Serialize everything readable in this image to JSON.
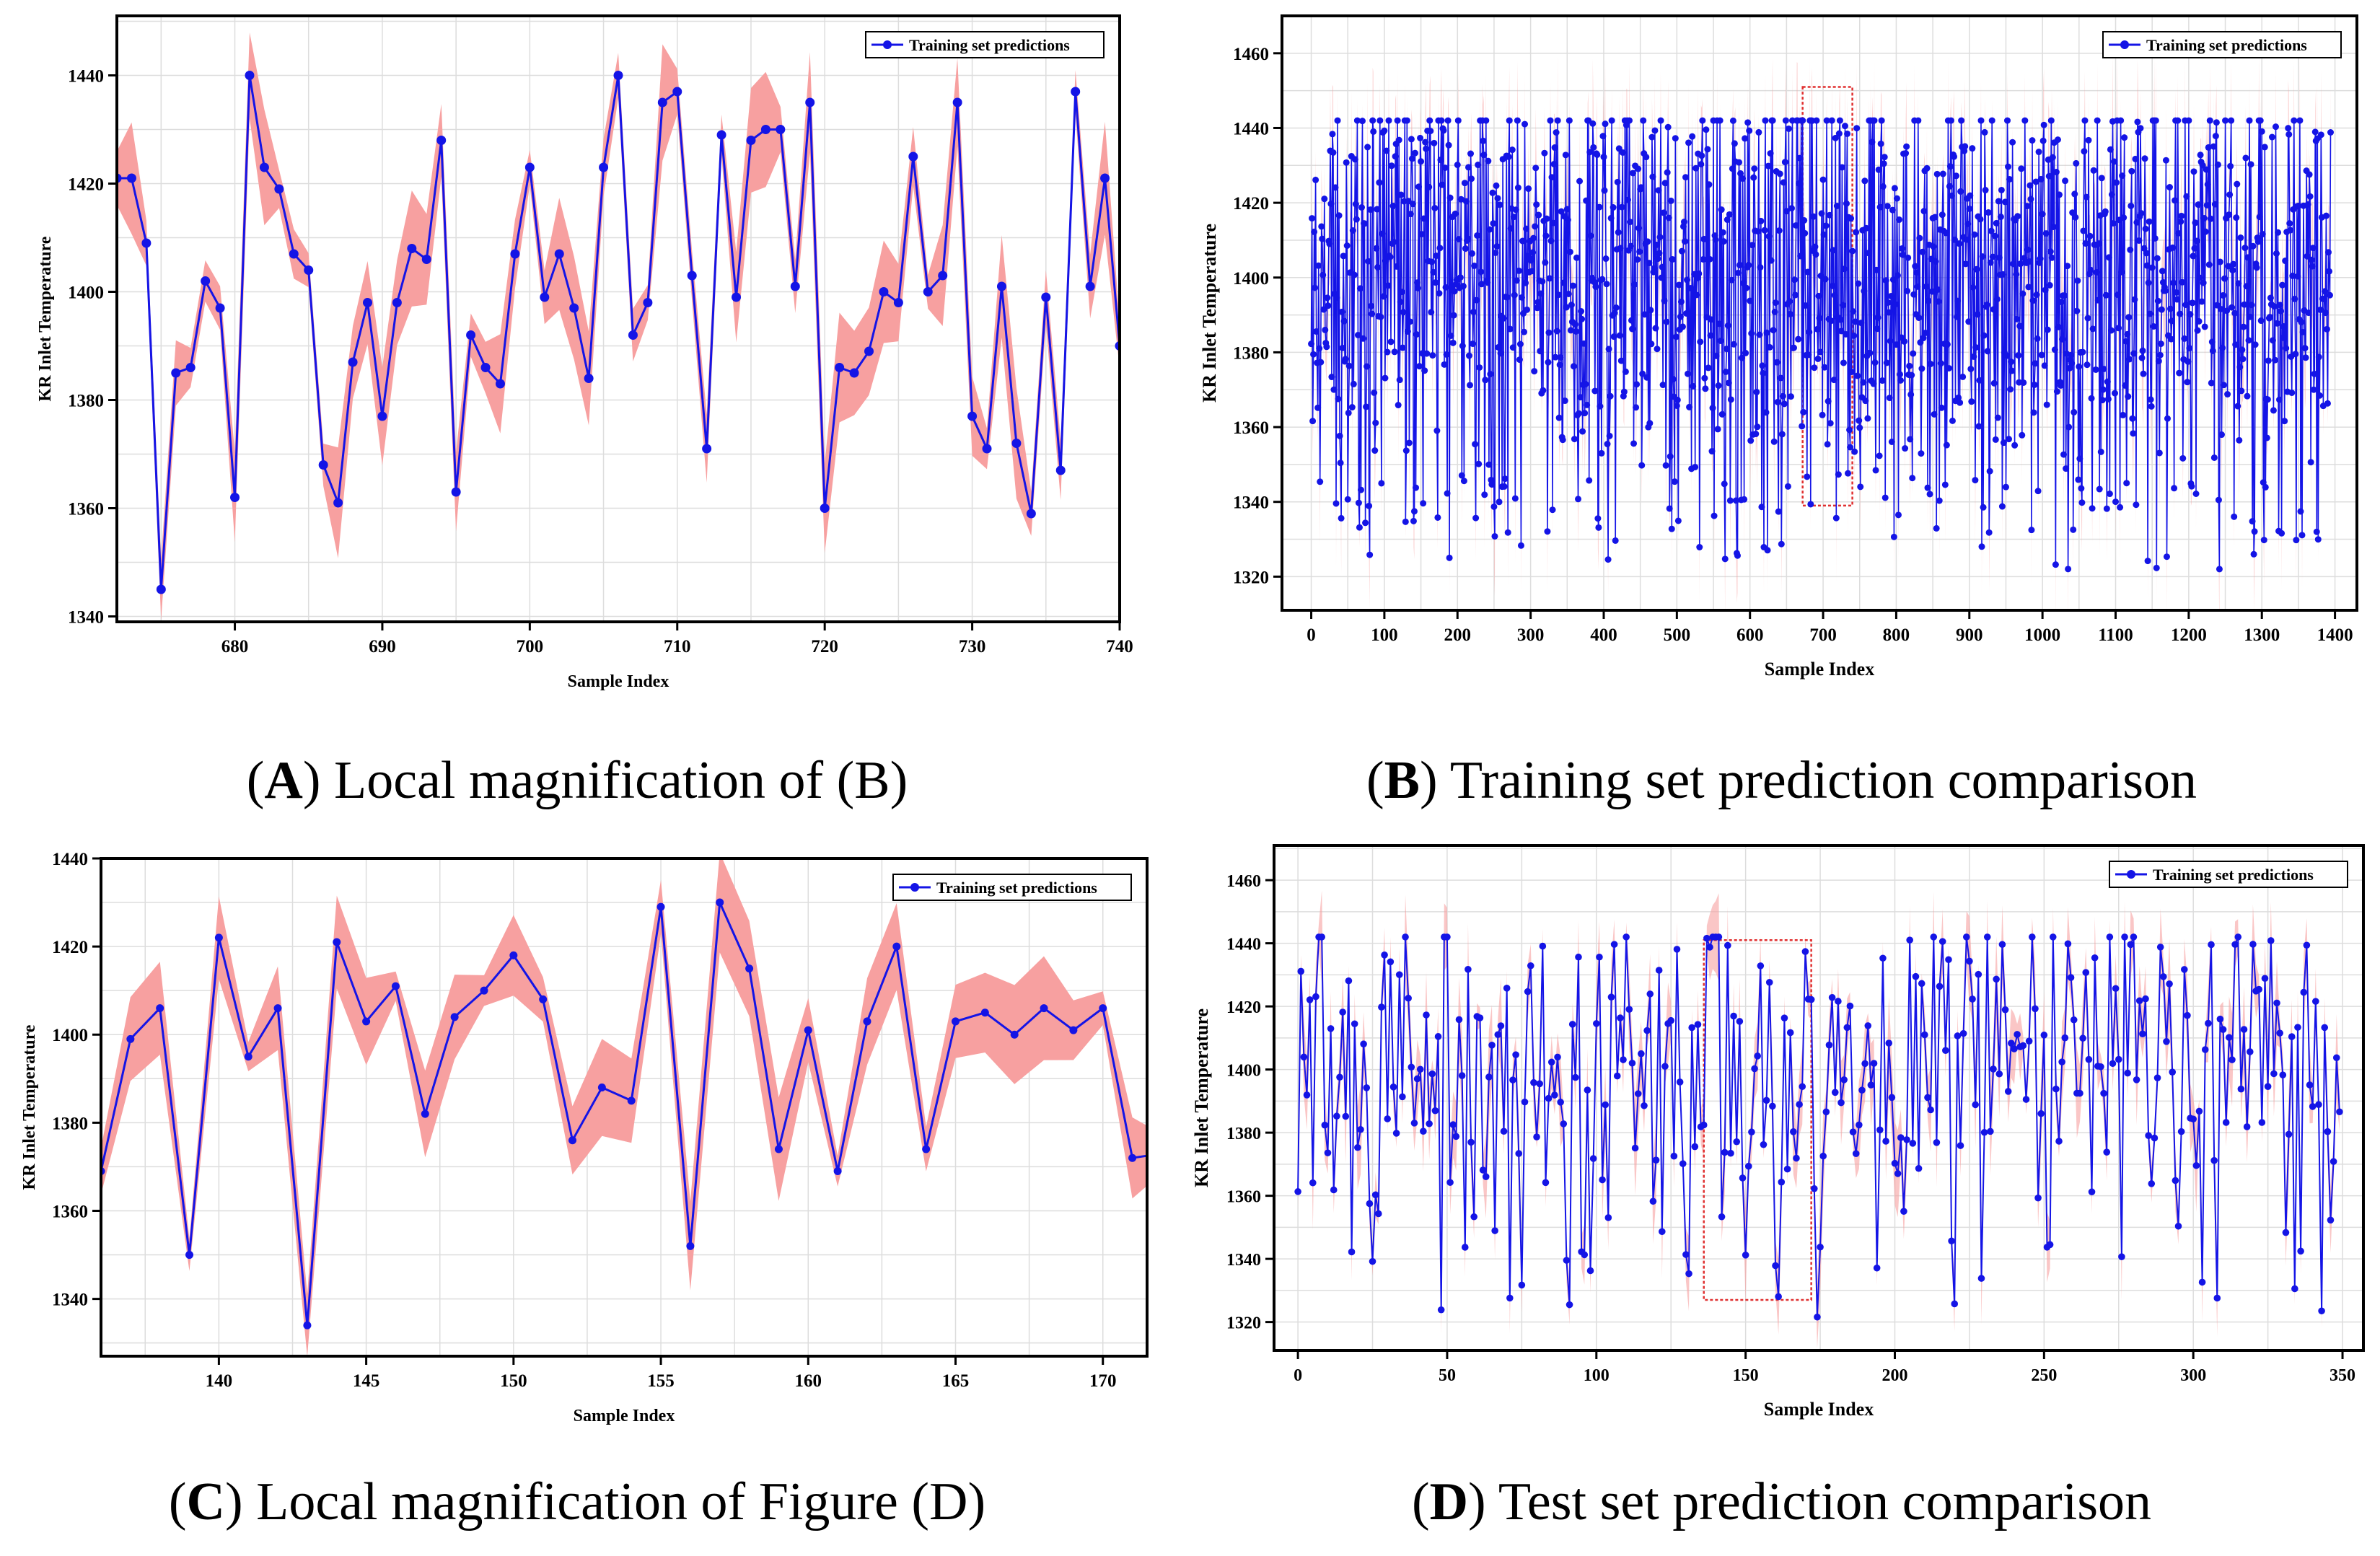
{
  "panels": [
    {
      "id": "A",
      "caption_letter": "A",
      "caption_text": "Local magnification of (B)",
      "chart_data": {
        "type": "line",
        "xlabel": "Sample Index",
        "ylabel": "KR Inlet Temperature",
        "xlim": [
          672,
          740
        ],
        "ylim": [
          1339,
          1451
        ],
        "xticks": [
          680,
          690,
          700,
          710,
          720,
          730,
          740
        ],
        "yticks": [
          1340,
          1360,
          1380,
          1400,
          1420,
          1440
        ],
        "legend": "top-right",
        "grid": true,
        "series": [
          {
            "name": "Training set predictions",
            "color": "#1414e6",
            "band_color": "#f7a0a0",
            "markers": true,
            "x": [
              672,
              673,
              674,
              675,
              676,
              677,
              678,
              679,
              680,
              681,
              682,
              683,
              684,
              685,
              686,
              687,
              688,
              689,
              690,
              691,
              692,
              693,
              694,
              695,
              696,
              697,
              698,
              699,
              700,
              701,
              702,
              703,
              704,
              705,
              706,
              707,
              708,
              709,
              710,
              711,
              712,
              713,
              714,
              715,
              716,
              717,
              718,
              719,
              720,
              721,
              722,
              723,
              724,
              725,
              726,
              727,
              728,
              729,
              730,
              731,
              732,
              733,
              734,
              735,
              736,
              737,
              738,
              739,
              740
            ],
            "values": [
              1421,
              1421,
              1409,
              1345,
              1385,
              1386,
              1402,
              1397,
              1362,
              1440,
              1423,
              1419,
              1407,
              1404,
              1368,
              1361,
              1387,
              1398,
              1377,
              1398,
              1408,
              1406,
              1428,
              1363,
              1392,
              1386,
              1383,
              1407,
              1423,
              1399,
              1407,
              1397,
              1384,
              1423,
              1440,
              1392,
              1398,
              1435,
              1437,
              1403,
              1371,
              1429,
              1399,
              1428,
              1430,
              1430,
              1401,
              1435,
              1360,
              1386,
              1385,
              1389,
              1400,
              1398,
              1425,
              1400,
              1403,
              1435,
              1377,
              1371,
              1401,
              1372,
              1359,
              1399,
              1367,
              1437,
              1401,
              1421,
              1390
            ]
          }
        ]
      }
    },
    {
      "id": "B",
      "caption_letter": "B",
      "caption_text": "Training set prediction comparison",
      "chart_data": {
        "type": "line",
        "xlabel": "Sample Index",
        "ylabel": "KR Inlet Temperature",
        "xlim": [
          -40,
          1430
        ],
        "ylim": [
          1311,
          1470
        ],
        "xticks": [
          0,
          100,
          200,
          300,
          400,
          500,
          600,
          700,
          800,
          900,
          1000,
          1100,
          1200,
          1300,
          1400
        ],
        "yticks": [
          1320,
          1340,
          1360,
          1380,
          1400,
          1420,
          1440,
          1460
        ],
        "legend": "top-right",
        "grid": true,
        "series": [
          {
            "name": "Training set predictions",
            "color": "#1414e6",
            "band_color": "#f7a0a0",
            "markers": true,
            "n_points": 1395,
            "mean": 1400,
            "range": [
              1322,
              1442
            ]
          }
        ],
        "highlight_region": {
          "x": [
            672,
            740
          ],
          "y": [
            1339,
            1451
          ]
        }
      }
    },
    {
      "id": "C",
      "caption_letter": "C",
      "caption_text": "Local magnification of Figure (D)",
      "chart_data": {
        "type": "line",
        "xlabel": "Sample Index",
        "ylabel": "KR Inlet Temperature",
        "xlim": [
          136,
          171.5
        ],
        "ylim": [
          1327,
          1440
        ],
        "xticks": [
          140,
          145,
          150,
          155,
          160,
          165,
          170
        ],
        "yticks": [
          1340,
          1360,
          1380,
          1400,
          1420,
          1440
        ],
        "legend": "top-right",
        "grid": true,
        "series": [
          {
            "name": "Training set predictions",
            "color": "#1414e6",
            "band_color": "#f7a0a0",
            "markers": true,
            "x": [
              136,
              137,
              138,
              139,
              140,
              141,
              142,
              143,
              144,
              145,
              146,
              147,
              148,
              149,
              150,
              151,
              152,
              153,
              154,
              155,
              156,
              157,
              158,
              159,
              160,
              161,
              162,
              163,
              164,
              165,
              166,
              167,
              168,
              169,
              170,
              171,
              172
            ],
            "values": [
              1369,
              1399,
              1406,
              1350,
              1422,
              1395,
              1406,
              1334,
              1421,
              1403,
              1411,
              1382,
              1404,
              1410,
              1418,
              1408,
              1376,
              1388,
              1385,
              1429,
              1352,
              1430,
              1415,
              1374,
              1401,
              1369,
              1403,
              1420,
              1374,
              1403,
              1405,
              1400,
              1406,
              1401,
              1406,
              1372,
              1373
            ]
          }
        ]
      }
    },
    {
      "id": "D",
      "caption_letter": "D",
      "caption_text": "Test set prediction comparison",
      "chart_data": {
        "type": "line",
        "xlabel": "Sample Index",
        "ylabel": "KR Inlet Temperature",
        "xlim": [
          -8,
          357
        ],
        "ylim": [
          1311,
          1471
        ],
        "xticks": [
          0,
          50,
          100,
          150,
          200,
          250,
          300,
          350
        ],
        "yticks": [
          1320,
          1340,
          1360,
          1380,
          1400,
          1420,
          1440,
          1460
        ],
        "legend": "top-right",
        "grid": true,
        "series": [
          {
            "name": "Training set predictions",
            "color": "#1414e6",
            "band_color": "#f7a0a0",
            "markers": true,
            "n_points": 350,
            "mean": 1400,
            "range": [
              1321,
              1442
            ]
          }
        ],
        "highlight_region": {
          "x": [
            136,
            172
          ],
          "y": [
            1327,
            1441
          ]
        }
      }
    }
  ]
}
